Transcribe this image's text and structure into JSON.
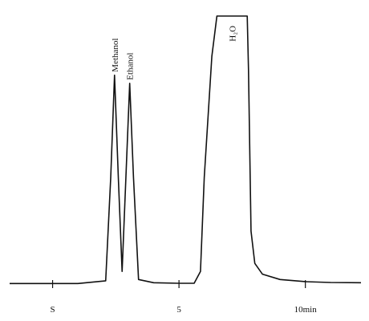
{
  "chart_data": {
    "type": "line",
    "x_unit": "min",
    "xlim": [
      -1.7,
      12.2
    ],
    "ylim": [
      0,
      100
    ],
    "grid": false,
    "ticks": [
      {
        "x": 0,
        "label": "S"
      },
      {
        "x": 5,
        "label": "5"
      },
      {
        "x": 10,
        "label": "10min"
      }
    ],
    "peaks": [
      {
        "label": "Methanol",
        "x": 2.45,
        "height": 78
      },
      {
        "label": "Ethanol",
        "x": 3.05,
        "height": 75
      },
      {
        "label": "H₂O",
        "x": 7.1,
        "height": 100
      }
    ],
    "series": [
      {
        "x": [
          -1.7,
          0.0,
          1.0,
          2.1,
          2.3,
          2.45,
          2.6,
          2.75,
          2.9,
          3.05,
          3.2,
          3.4,
          4.0,
          5.0,
          5.6,
          5.85,
          6.0,
          6.3,
          6.5,
          7.7,
          7.75,
          7.85,
          8.0,
          8.3,
          9.0,
          10.0,
          11.0,
          12.2
        ],
        "y": [
          0.5,
          0.5,
          0.5,
          1.5,
          40,
          78,
          40,
          5,
          40,
          75,
          40,
          2,
          0.8,
          0.6,
          0.6,
          5,
          40,
          85,
          100,
          100,
          80,
          20,
          8,
          4,
          2,
          1.2,
          0.9,
          0.8
        ]
      }
    ]
  }
}
